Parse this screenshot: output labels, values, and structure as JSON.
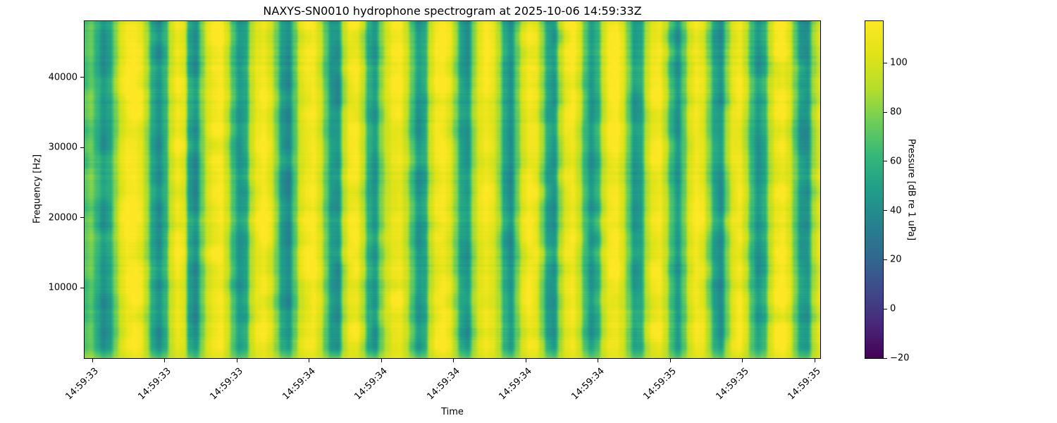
{
  "title": "NAXYS-SN0010 hydrophone spectrogram at 2025-10-06 14:59:33Z",
  "axes": {
    "xlabel": "Time",
    "ylabel": "Frequency [Hz]",
    "x_tick_labels": [
      "14:59:33",
      "14:59:33",
      "14:59:33",
      "14:59:34",
      "14:59:34",
      "14:59:34",
      "14:59:34",
      "14:59:34",
      "14:59:35",
      "14:59:35",
      "14:59:35"
    ],
    "y_ticks": [
      {
        "value": 10000,
        "label": "10000"
      },
      {
        "value": 20000,
        "label": "20000"
      },
      {
        "value": 30000,
        "label": "30000"
      },
      {
        "value": 40000,
        "label": "40000"
      }
    ],
    "y_min": 0,
    "y_max": 48000
  },
  "colorbar": {
    "label": "Pressure [dB re 1 uPa]",
    "vmin": -20,
    "vmax": 117,
    "ticks": [
      {
        "value": -20,
        "label": "−20"
      },
      {
        "value": 0,
        "label": "0"
      },
      {
        "value": 20,
        "label": "20"
      },
      {
        "value": 40,
        "label": "40"
      },
      {
        "value": 60,
        "label": "60"
      },
      {
        "value": 80,
        "label": "80"
      },
      {
        "value": 100,
        "label": "100"
      }
    ],
    "colormap": "viridis",
    "stops": [
      "#440154",
      "#482878",
      "#3e4a89",
      "#31688e",
      "#26828e",
      "#1f9e89",
      "#35b779",
      "#6dcd59",
      "#b5de2b",
      "#dfe318",
      "#fde725"
    ]
  },
  "chart_data": {
    "type": "heatmap",
    "title": "NAXYS-SN0010 hydrophone spectrogram at 2025-10-06 14:59:33Z",
    "xlabel": "Time",
    "ylabel": "Frequency [Hz]",
    "zlabel": "Pressure [dB re 1 uPa]",
    "time_start": "14:59:33",
    "time_end": "14:59:35",
    "freq_range_hz": [
      0,
      48000
    ],
    "db_range": [
      -20,
      117
    ],
    "colormap": "viridis",
    "grid": false,
    "legend": "colorbar-right",
    "column_db": [
      68,
      76,
      60,
      45,
      52,
      80,
      104,
      114,
      116,
      110,
      88,
      52,
      40,
      57,
      98,
      112,
      106,
      52,
      42,
      78,
      102,
      112,
      115,
      96,
      64,
      44,
      50,
      92,
      108,
      114,
      104,
      80,
      48,
      40,
      72,
      104,
      113,
      116,
      102,
      74,
      46,
      42,
      90,
      110,
      112,
      92,
      56,
      46,
      80,
      100,
      112,
      114,
      98,
      70,
      46,
      52,
      95,
      111,
      115,
      106,
      82,
      50,
      44,
      84,
      106,
      114,
      108,
      88,
      54,
      42,
      74,
      102,
      113,
      110,
      84,
      52,
      46,
      88,
      109,
      114,
      98,
      66,
      46,
      58,
      96,
      112,
      115,
      103,
      76,
      48,
      52,
      92,
      110,
      113,
      94,
      62,
      44,
      72,
      103,
      114,
      108,
      82,
      52,
      44,
      82,
      107,
      113,
      96,
      64,
      46,
      56,
      94,
      111,
      115,
      104,
      76,
      48,
      44,
      86,
      102
    ],
    "texture": {
      "seed": 20251006,
      "blob_noise_db": 9,
      "blob_scale_x": 26,
      "blob_scale_y": 22,
      "row_noise_db": 7,
      "row_mask_scale_x": 70,
      "row_mask_scale_y": 34,
      "bottom_blend_rows": 16,
      "bottom_level_db": 96
    }
  }
}
